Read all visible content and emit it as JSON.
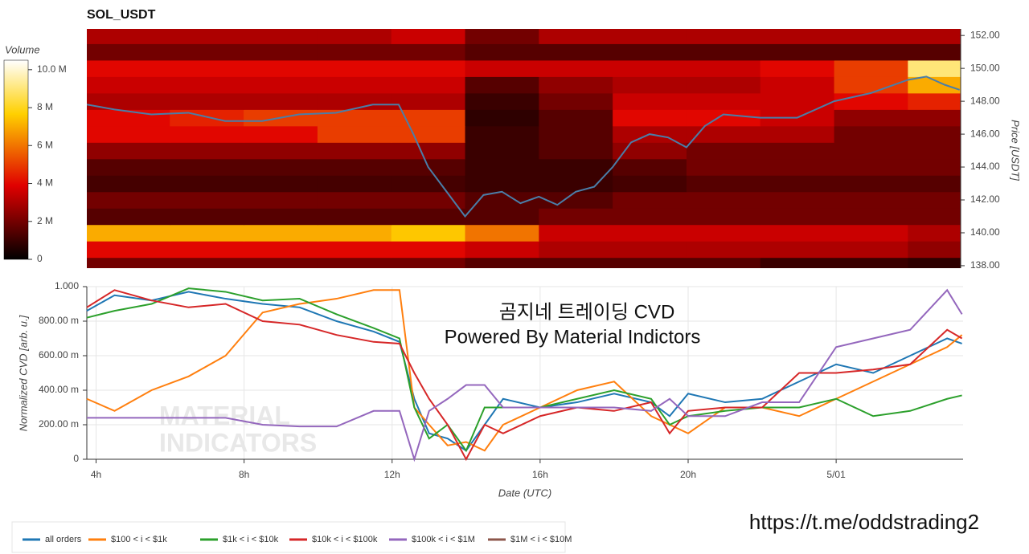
{
  "chart_data": [
    {
      "type": "heatmap",
      "title": "SOL_USDT",
      "ylabel": "Price [USDT]",
      "xlim": [
        3.75,
        27.43
      ],
      "ylim": [
        137.85,
        152.4
      ],
      "yticks": [
        {
          "value": 138,
          "label": "138.00"
        },
        {
          "value": 140,
          "label": "140.00"
        },
        {
          "value": 142,
          "label": "142.00"
        },
        {
          "value": 144,
          "label": "144.00"
        },
        {
          "value": 146,
          "label": "146.00"
        },
        {
          "value": 148,
          "label": "148.00"
        },
        {
          "value": 150,
          "label": "150.00"
        },
        {
          "value": 152,
          "label": "152.00"
        }
      ],
      "x_bins": [
        3.75,
        6,
        8,
        10,
        12,
        14,
        16,
        18,
        20,
        22,
        24,
        26,
        27.43
      ],
      "y_bins": [
        137.5,
        138.5,
        139.5,
        140.5,
        141.5,
        142.5,
        143.5,
        144.5,
        145.5,
        146.5,
        147.5,
        148.5,
        149.5,
        150.5,
        151.5,
        152.5
      ],
      "z": [
        [
          2,
          2,
          2,
          2,
          2,
          1.5,
          1.5,
          1.5,
          1.5,
          1,
          1,
          0.8
        ],
        [
          4,
          4,
          4,
          4,
          4,
          3.5,
          3,
          3,
          3,
          3,
          3,
          2.5
        ],
        [
          7,
          7,
          7,
          7,
          7.5,
          6,
          3.5,
          3.5,
          3.5,
          3.5,
          3.5,
          3
        ],
        [
          1.5,
          1.5,
          1.5,
          1.5,
          1.5,
          1.5,
          2,
          2,
          2,
          2,
          2,
          2
        ],
        [
          2,
          2,
          2,
          2,
          2,
          1.5,
          1.5,
          2,
          2,
          2,
          2,
          2
        ],
        [
          1.2,
          1.2,
          1.2,
          1.2,
          1.2,
          1,
          1,
          1.2,
          1.5,
          1.5,
          1.5,
          1.5
        ],
        [
          1.5,
          1.5,
          1.5,
          1.5,
          1.5,
          1,
          1,
          1.5,
          2,
          2,
          2,
          2
        ],
        [
          2.5,
          2.5,
          2.5,
          2.5,
          2.5,
          1,
          1.5,
          2.5,
          2,
          2,
          2,
          2
        ],
        [
          4,
          4,
          4,
          5,
          5,
          1,
          1.5,
          3,
          3,
          3,
          2,
          2
        ],
        [
          4,
          4.5,
          5,
          5,
          5,
          0.8,
          1.5,
          4,
          4,
          3.5,
          2.5,
          2.5
        ],
        [
          3,
          3,
          3,
          3,
          3,
          1,
          2,
          3.5,
          3.5,
          3.5,
          4,
          4.5
        ],
        [
          3.5,
          3.5,
          3.5,
          3.5,
          3.5,
          1.5,
          2.5,
          3,
          3,
          3.5,
          5,
          7
        ],
        [
          4,
          4,
          4,
          4,
          4,
          3.5,
          3.5,
          3.5,
          3.5,
          4,
          5,
          9
        ],
        [
          2,
          2,
          2,
          2,
          2,
          1.5,
          1.5,
          1.5,
          1.5,
          1.5,
          1.5,
          1.5
        ],
        [
          3,
          3,
          3,
          3,
          3.5,
          2,
          3,
          3,
          3,
          3,
          3,
          3
        ]
      ],
      "colorbar": {
        "title": "Volume",
        "lim": [
          0,
          10.5
        ],
        "ticks": [
          0,
          {
            "value": 2,
            "label": "2 M"
          },
          {
            "value": 4,
            "label": "4 M"
          },
          {
            "value": 6,
            "label": "6 M"
          },
          {
            "value": 8,
            "label": "8 M"
          },
          {
            "value": 10,
            "label": "10.0 M"
          }
        ]
      },
      "line": {
        "color": "#4a7ea8",
        "x": [
          3.75,
          4.5,
          5.5,
          6.5,
          7.5,
          8.5,
          9.5,
          10.5,
          11.5,
          12.2,
          12.6,
          13,
          13.5,
          14,
          14.5,
          15,
          15.5,
          16,
          16.5,
          17,
          17.5,
          18,
          18.5,
          19,
          19.5,
          20,
          20.5,
          21,
          22,
          23,
          24,
          25,
          26,
          26.5,
          27,
          27.4
        ],
        "values": [
          147.8,
          147.5,
          147.2,
          147.3,
          146.8,
          146.8,
          147.2,
          147.3,
          147.8,
          147.8,
          146,
          144,
          142.5,
          141,
          142.3,
          142.5,
          141.8,
          142.2,
          141.7,
          142.5,
          142.8,
          144,
          145.5,
          146,
          145.8,
          145.2,
          146.5,
          147.2,
          147,
          147,
          148,
          148.5,
          149.3,
          149.5,
          149,
          148.7
        ]
      }
    },
    {
      "type": "line",
      "xlabel": "Date (UTC)",
      "ylabel": "Normalized CVD [arb. u.]",
      "xlim": [
        3.75,
        27.43
      ],
      "ylim": [
        0,
        1
      ],
      "xticks": [
        {
          "value": 4,
          "label": "4h"
        },
        {
          "value": 8,
          "label": "8h"
        },
        {
          "value": 12,
          "label": "12h"
        },
        {
          "value": 16,
          "label": "16h"
        },
        {
          "value": 20,
          "label": "20h"
        },
        {
          "value": 24,
          "label": "5/01"
        }
      ],
      "yticks": [
        0,
        {
          "value": 0.2,
          "label": "200.00 m"
        },
        {
          "value": 0.4,
          "label": "400.00 m"
        },
        {
          "value": 0.6,
          "label": "600.00 m"
        },
        {
          "value": 0.8,
          "label": "800.00 m"
        },
        {
          "value": 1,
          "label": "1.000"
        }
      ],
      "grid": true,
      "annotations": [
        "곰지네 트레이딩 CVD",
        "Powered By Material Indictors",
        "https://t.me/oddstrading2"
      ],
      "watermark": [
        "MATERIAL",
        "INDICATORS"
      ],
      "x": [
        3.75,
        4.5,
        5.5,
        6.5,
        7.5,
        8.5,
        9.5,
        10.5,
        11.5,
        12.2,
        12.6,
        13,
        13.5,
        14,
        14.5,
        15,
        16,
        17,
        18,
        19,
        19.5,
        20,
        21,
        22,
        23,
        24,
        25,
        26,
        27,
        27.4
      ],
      "series": [
        {
          "name": "all orders",
          "color": "#1f77b4",
          "values": [
            0.86,
            0.95,
            0.92,
            0.97,
            0.93,
            0.9,
            0.88,
            0.8,
            0.74,
            0.68,
            0.35,
            0.15,
            0.12,
            0.05,
            0.2,
            0.35,
            0.3,
            0.33,
            0.38,
            0.33,
            0.25,
            0.38,
            0.33,
            0.35,
            0.45,
            0.55,
            0.5,
            0.6,
            0.7,
            0.67
          ]
        },
        {
          "name": "$100 < i < $1k",
          "color": "#ff7f0e",
          "values": [
            0.35,
            0.28,
            0.4,
            0.48,
            0.6,
            0.85,
            0.9,
            0.93,
            0.98,
            0.98,
            0.3,
            0.2,
            0.08,
            0.1,
            0.05,
            0.2,
            0.3,
            0.4,
            0.45,
            0.25,
            0.2,
            0.15,
            0.3,
            0.3,
            0.25,
            0.35,
            0.45,
            0.55,
            0.65,
            0.72
          ]
        },
        {
          "name": "$1k < i < $10k",
          "color": "#2ca02c",
          "values": [
            0.82,
            0.86,
            0.9,
            0.99,
            0.97,
            0.92,
            0.93,
            0.84,
            0.76,
            0.7,
            0.3,
            0.12,
            0.2,
            0.05,
            0.3,
            0.3,
            0.3,
            0.35,
            0.4,
            0.35,
            0.2,
            0.25,
            0.28,
            0.3,
            0.3,
            0.35,
            0.25,
            0.28,
            0.35,
            0.37
          ]
        },
        {
          "name": "$10k < i < $100k",
          "color": "#d62728",
          "values": [
            0.88,
            0.98,
            0.92,
            0.88,
            0.9,
            0.8,
            0.78,
            0.72,
            0.68,
            0.67,
            0.5,
            0.35,
            0.2,
            0,
            0.2,
            0.15,
            0.25,
            0.3,
            0.28,
            0.33,
            0.15,
            0.28,
            0.3,
            0.3,
            0.5,
            0.5,
            0.52,
            0.55,
            0.75,
            0.7
          ]
        },
        {
          "name": "$100k < i < $1M",
          "color": "#9467bd",
          "values": [
            0.24,
            0.24,
            0.24,
            0.24,
            0.24,
            0.2,
            0.19,
            0.19,
            0.28,
            0.28,
            0,
            0.28,
            0.35,
            0.43,
            0.43,
            0.3,
            0.3,
            0.3,
            0.3,
            0.28,
            0.35,
            0.25,
            0.25,
            0.33,
            0.33,
            0.65,
            0.7,
            0.75,
            0.98,
            0.84
          ]
        },
        {
          "name": "$1M < i < $10M",
          "color": "#8c564b",
          "values": [
            null,
            null,
            null,
            null,
            null,
            null,
            null,
            null,
            null,
            null,
            null,
            null,
            null,
            null,
            null,
            null,
            null,
            null,
            null,
            null,
            null,
            null,
            null,
            null,
            null,
            null,
            null,
            null,
            null,
            null
          ]
        }
      ]
    }
  ]
}
